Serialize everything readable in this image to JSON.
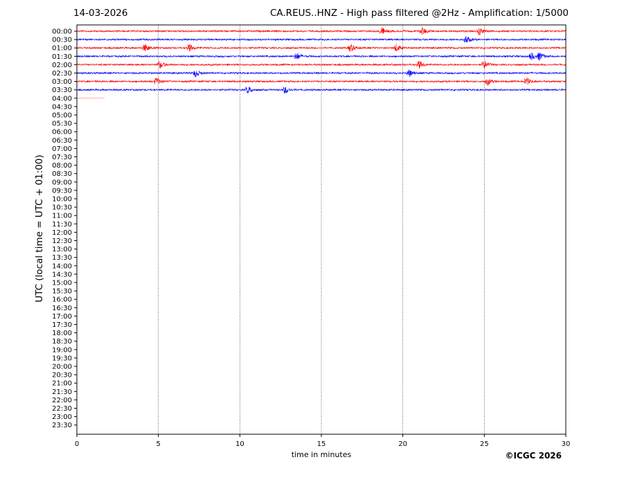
{
  "header": {
    "date": "14-03-2026",
    "title": "CA.REUS..HNZ - High pass filtered @2Hz - Amplification: 1/5000"
  },
  "footer": {
    "copyright": "©ICGC 2026"
  },
  "chart_data": {
    "type": "line",
    "title": "CA.REUS..HNZ - High pass filtered @2Hz - Amplification: 1/5000",
    "xlabel": "time in minutes",
    "ylabel": "UTC (local time = UTC + 01:00)",
    "xlim": [
      0,
      30
    ],
    "x_ticks": [
      0,
      5,
      10,
      15,
      20,
      25,
      30
    ],
    "vertical_grid": [
      5,
      10,
      15,
      20,
      25
    ],
    "y_ticks": [
      "00:00",
      "00:30",
      "01:00",
      "01:30",
      "02:00",
      "02:30",
      "03:00",
      "03:30",
      "04:00",
      "04:30",
      "05:00",
      "05:30",
      "06:00",
      "06:30",
      "07:00",
      "07:30",
      "08:00",
      "08:30",
      "09:00",
      "09:30",
      "10:00",
      "10:30",
      "11:00",
      "11:30",
      "12:00",
      "12:30",
      "13:00",
      "13:30",
      "14:00",
      "14:30",
      "15:00",
      "15:30",
      "16:00",
      "16:30",
      "17:00",
      "17:30",
      "18:00",
      "18:30",
      "19:00",
      "19:30",
      "20:00",
      "20:30",
      "21:00",
      "21:30",
      "22:00",
      "22:30",
      "23:00",
      "23:30"
    ],
    "colors": {
      "even_row": "#ff0000",
      "odd_row": "#0000ff"
    },
    "traces": [
      {
        "row": "00:00",
        "color": "#ff0000",
        "end_min": 30,
        "events_min": [
          18.7,
          21.2,
          24.7
        ]
      },
      {
        "row": "00:30",
        "color": "#0000ff",
        "end_min": 30,
        "events_min": [
          23.9
        ]
      },
      {
        "row": "01:00",
        "color": "#ff0000",
        "end_min": 30,
        "events_min": [
          4.2,
          6.9,
          16.8,
          19.6
        ]
      },
      {
        "row": "01:30",
        "color": "#0000ff",
        "end_min": 30,
        "events_min": [
          13.5,
          27.9,
          28.4
        ]
      },
      {
        "row": "02:00",
        "color": "#ff0000",
        "end_min": 30,
        "events_min": [
          5.1,
          21.0,
          25.0
        ]
      },
      {
        "row": "02:30",
        "color": "#0000ff",
        "end_min": 30,
        "events_min": [
          7.3,
          20.4
        ]
      },
      {
        "row": "03:00",
        "color": "#ff0000",
        "end_min": 30,
        "events_min": [
          4.9,
          25.2,
          27.6
        ]
      },
      {
        "row": "03:30",
        "color": "#0000ff",
        "end_min": 30,
        "events_min": [
          10.5,
          12.8
        ]
      },
      {
        "row": "04:00",
        "color": "#ff0000",
        "end_min": 1.7,
        "events_min": []
      }
    ]
  }
}
